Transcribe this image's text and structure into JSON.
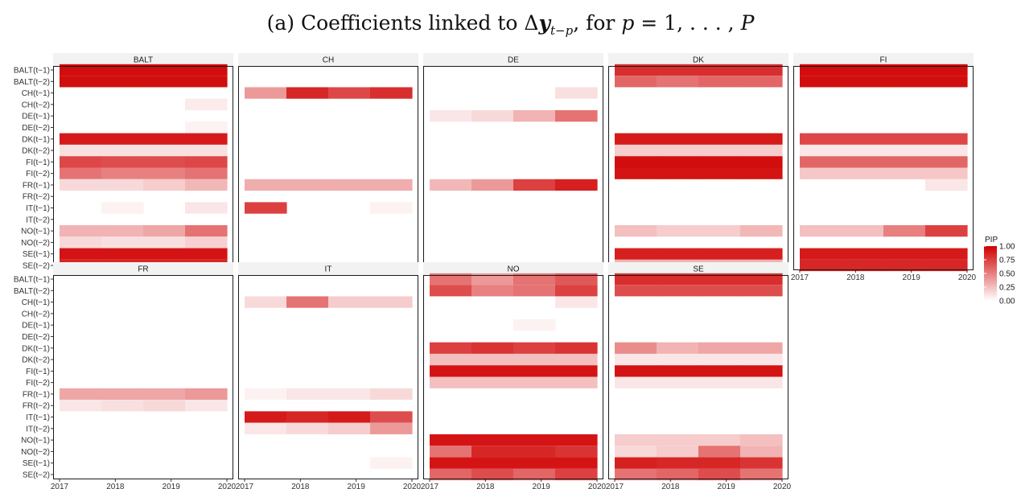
{
  "title": {
    "text_a": "(a) Coefficients linked to Δ",
    "y": "y",
    "sub": "t−p",
    "text_b": ", for ",
    "p": "p",
    "text_c": " = 1, . . . , ",
    "P": "P"
  },
  "chart_data": {
    "type": "heatmap",
    "facets": [
      "BALT",
      "CH",
      "DE",
      "DK",
      "FI",
      "FR",
      "IT",
      "NO",
      "SE"
    ],
    "rows": [
      "BALT(t−1)",
      "BALT(t−2)",
      "CH(t−1)",
      "CH(t−2)",
      "DE(t−1)",
      "DE(t−2)",
      "DK(t−1)",
      "DK(t−2)",
      "FI(t−1)",
      "FI(t−2)",
      "FR(t−1)",
      "FR(t−2)",
      "IT(t−1)",
      "IT(t−2)",
      "NO(t−1)",
      "NO(t−2)",
      "SE(t−1)",
      "SE(t−2)"
    ],
    "x_ticks": [
      "2017",
      "2018",
      "2019",
      "2020"
    ],
    "x_range": [
      2017,
      2020
    ],
    "legend": {
      "title": "PIP",
      "ticks": [
        "1.00",
        "0.75",
        "0.50",
        "0.25",
        "0.00"
      ],
      "low_color": "#ffffff",
      "high_color": "#d00000",
      "position": "right"
    },
    "pip": {
      "BALT": [
        [
          0.95,
          0.95,
          0.95,
          0.95
        ],
        [
          0.95,
          0.95,
          0.95,
          0.95
        ],
        [
          0,
          0,
          0,
          0
        ],
        [
          0,
          0,
          0,
          0.08
        ],
        [
          0,
          0,
          0,
          0
        ],
        [
          0,
          0,
          0,
          0.05
        ],
        [
          0.9,
          0.9,
          0.9,
          0.9
        ],
        [
          0.12,
          0.12,
          0.12,
          0.12
        ],
        [
          0.72,
          0.7,
          0.7,
          0.72
        ],
        [
          0.55,
          0.5,
          0.5,
          0.55
        ],
        [
          0.15,
          0.15,
          0.2,
          0.28
        ],
        [
          0,
          0,
          0,
          0
        ],
        [
          0,
          0.05,
          0,
          0.1
        ],
        [
          0,
          0,
          0,
          0
        ],
        [
          0.3,
          0.3,
          0.35,
          0.55
        ],
        [
          0.15,
          0.12,
          0.12,
          0.18
        ],
        [
          0.92,
          0.92,
          0.92,
          0.92
        ],
        [
          0.85,
          0.85,
          0.85,
          0.85
        ]
      ],
      "CH": [
        [
          0,
          0,
          0,
          0
        ],
        [
          0,
          0,
          0,
          0
        ],
        [
          0.4,
          0.85,
          0.72,
          0.82
        ],
        [
          0,
          0,
          0,
          0
        ],
        [
          0,
          0,
          0,
          0
        ],
        [
          0,
          0,
          0,
          0
        ],
        [
          0,
          0,
          0,
          0
        ],
        [
          0,
          0,
          0,
          0
        ],
        [
          0,
          0,
          0,
          0
        ],
        [
          0,
          0,
          0,
          0
        ],
        [
          0.32,
          0.32,
          0.32,
          0.32
        ],
        [
          0,
          0,
          0,
          0
        ],
        [
          0.75,
          0,
          0,
          0.05
        ],
        [
          0,
          0,
          0,
          0
        ],
        [
          0,
          0,
          0,
          0
        ],
        [
          0,
          0,
          0,
          0
        ],
        [
          0,
          0,
          0,
          0
        ],
        [
          0,
          0,
          0,
          0
        ]
      ],
      "DE": [
        [
          0,
          0,
          0,
          0
        ],
        [
          0,
          0,
          0,
          0
        ],
        [
          0,
          0,
          0,
          0.12
        ],
        [
          0,
          0,
          0,
          0
        ],
        [
          0.1,
          0.15,
          0.3,
          0.55
        ],
        [
          0,
          0,
          0,
          0
        ],
        [
          0,
          0,
          0,
          0
        ],
        [
          0,
          0,
          0,
          0
        ],
        [
          0,
          0,
          0,
          0
        ],
        [
          0,
          0,
          0,
          0
        ],
        [
          0.28,
          0.4,
          0.75,
          0.88
        ],
        [
          0,
          0,
          0,
          0
        ],
        [
          0,
          0,
          0,
          0
        ],
        [
          0,
          0,
          0,
          0
        ],
        [
          0,
          0,
          0,
          0
        ],
        [
          0,
          0,
          0,
          0
        ],
        [
          0,
          0,
          0,
          0
        ],
        [
          0,
          0,
          0,
          0
        ]
      ],
      "DK": [
        [
          0.82,
          0.82,
          0.82,
          0.82
        ],
        [
          0.6,
          0.55,
          0.6,
          0.6
        ],
        [
          0,
          0,
          0,
          0
        ],
        [
          0,
          0,
          0,
          0
        ],
        [
          0,
          0,
          0,
          0
        ],
        [
          0,
          0,
          0,
          0
        ],
        [
          0.9,
          0.9,
          0.9,
          0.9
        ],
        [
          0.2,
          0.2,
          0.2,
          0.2
        ],
        [
          0.95,
          0.95,
          0.95,
          0.95
        ],
        [
          0.92,
          0.92,
          0.92,
          0.92
        ],
        [
          0,
          0,
          0,
          0
        ],
        [
          0,
          0,
          0,
          0
        ],
        [
          0,
          0,
          0,
          0
        ],
        [
          0,
          0,
          0,
          0
        ],
        [
          0.25,
          0.2,
          0.2,
          0.28
        ],
        [
          0,
          0,
          0,
          0
        ],
        [
          0.88,
          0.88,
          0.88,
          0.88
        ],
        [
          0.3,
          0.3,
          0.3,
          0.3
        ]
      ],
      "FI": [
        [
          0.95,
          0.95,
          0.95,
          0.95
        ],
        [
          0.95,
          0.95,
          0.95,
          0.95
        ],
        [
          0,
          0,
          0,
          0
        ],
        [
          0,
          0,
          0,
          0
        ],
        [
          0,
          0,
          0,
          0
        ],
        [
          0,
          0,
          0,
          0
        ],
        [
          0.72,
          0.72,
          0.72,
          0.72
        ],
        [
          0.1,
          0.1,
          0.1,
          0.1
        ],
        [
          0.6,
          0.6,
          0.6,
          0.6
        ],
        [
          0.22,
          0.22,
          0.22,
          0.22
        ],
        [
          0,
          0,
          0,
          0.1
        ],
        [
          0,
          0,
          0,
          0
        ],
        [
          0,
          0,
          0,
          0
        ],
        [
          0,
          0,
          0,
          0
        ],
        [
          0.25,
          0.25,
          0.5,
          0.75
        ],
        [
          0,
          0,
          0,
          0
        ],
        [
          0.9,
          0.9,
          0.9,
          0.9
        ],
        [
          0.85,
          0.85,
          0.85,
          0.85
        ]
      ],
      "FR": [
        [
          0,
          0,
          0,
          0
        ],
        [
          0,
          0,
          0,
          0
        ],
        [
          0,
          0,
          0,
          0
        ],
        [
          0,
          0,
          0,
          0
        ],
        [
          0,
          0,
          0,
          0
        ],
        [
          0,
          0,
          0,
          0
        ],
        [
          0,
          0,
          0,
          0
        ],
        [
          0,
          0,
          0,
          0
        ],
        [
          0,
          0,
          0,
          0
        ],
        [
          0,
          0,
          0,
          0
        ],
        [
          0.35,
          0.35,
          0.35,
          0.4
        ],
        [
          0.1,
          0.12,
          0.15,
          0.1
        ],
        [
          0,
          0,
          0,
          0
        ],
        [
          0,
          0,
          0,
          0
        ],
        [
          0,
          0,
          0,
          0
        ],
        [
          0,
          0,
          0,
          0
        ],
        [
          0,
          0,
          0,
          0
        ],
        [
          0,
          0,
          0,
          0
        ]
      ],
      "IT": [
        [
          0,
          0,
          0,
          0
        ],
        [
          0,
          0,
          0,
          0
        ],
        [
          0.15,
          0.55,
          0.2,
          0.2
        ],
        [
          0,
          0,
          0,
          0
        ],
        [
          0,
          0,
          0,
          0
        ],
        [
          0,
          0,
          0,
          0
        ],
        [
          0,
          0,
          0,
          0
        ],
        [
          0,
          0,
          0,
          0
        ],
        [
          0,
          0,
          0,
          0
        ],
        [
          0,
          0,
          0,
          0
        ],
        [
          0.05,
          0.1,
          0.1,
          0.15
        ],
        [
          0,
          0,
          0,
          0
        ],
        [
          0.9,
          0.85,
          0.9,
          0.7
        ],
        [
          0.1,
          0.15,
          0.2,
          0.4
        ],
        [
          0,
          0,
          0,
          0
        ],
        [
          0,
          0,
          0,
          0
        ],
        [
          0,
          0,
          0,
          0.05
        ],
        [
          0,
          0,
          0,
          0
        ]
      ],
      "NO": [
        [
          0.55,
          0.4,
          0.55,
          0.65
        ],
        [
          0.7,
          0.5,
          0.55,
          0.75
        ],
        [
          0,
          0,
          0,
          0.1
        ],
        [
          0,
          0,
          0,
          0
        ],
        [
          0,
          0,
          0.05,
          0
        ],
        [
          0,
          0,
          0,
          0
        ],
        [
          0.75,
          0.8,
          0.75,
          0.8
        ],
        [
          0.25,
          0.25,
          0.25,
          0.25
        ],
        [
          0.92,
          0.92,
          0.92,
          0.92
        ],
        [
          0.25,
          0.25,
          0.25,
          0.25
        ],
        [
          0,
          0,
          0,
          0
        ],
        [
          0,
          0,
          0,
          0
        ],
        [
          0,
          0,
          0,
          0
        ],
        [
          0,
          0,
          0,
          0
        ],
        [
          0.92,
          0.92,
          0.92,
          0.92
        ],
        [
          0.55,
          0.85,
          0.85,
          0.8
        ],
        [
          0.92,
          0.92,
          0.92,
          0.92
        ],
        [
          0.6,
          0.7,
          0.6,
          0.75
        ]
      ],
      "SE": [
        [
          0.82,
          0.82,
          0.82,
          0.82
        ],
        [
          0.7,
          0.7,
          0.7,
          0.7
        ],
        [
          0,
          0,
          0,
          0
        ],
        [
          0,
          0,
          0,
          0
        ],
        [
          0,
          0,
          0,
          0
        ],
        [
          0,
          0,
          0,
          0
        ],
        [
          0.45,
          0.3,
          0.35,
          0.35
        ],
        [
          0.1,
          0.1,
          0.1,
          0.1
        ],
        [
          0.92,
          0.92,
          0.92,
          0.92
        ],
        [
          0.1,
          0.1,
          0.1,
          0.1
        ],
        [
          0,
          0,
          0,
          0
        ],
        [
          0,
          0,
          0,
          0
        ],
        [
          0,
          0,
          0,
          0
        ],
        [
          0,
          0,
          0,
          0
        ],
        [
          0.2,
          0.2,
          0.2,
          0.25
        ],
        [
          0.15,
          0.2,
          0.55,
          0.3
        ],
        [
          0.88,
          0.85,
          0.85,
          0.8
        ],
        [
          0.55,
          0.6,
          0.7,
          0.55
        ]
      ]
    }
  }
}
